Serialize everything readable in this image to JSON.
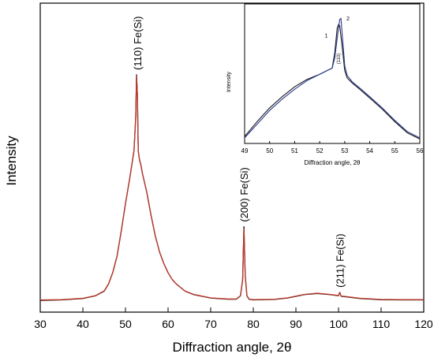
{
  "chart_data": [
    {
      "type": "line",
      "title": "",
      "xlabel": "Diffraction angle, 2θ",
      "ylabel": "Intensity",
      "xlim": [
        30,
        120
      ],
      "ylim": [
        0,
        1
      ],
      "x_ticks": [
        30,
        40,
        50,
        60,
        70,
        80,
        90,
        100,
        110,
        120
      ],
      "y_ticks": [],
      "grid": false,
      "series": [
        {
          "color": "#000000",
          "x": [
            30,
            35,
            40,
            43,
            45,
            46,
            47,
            48,
            49,
            50,
            51,
            51.5,
            52,
            52.4,
            52.6,
            52.8,
            53.0,
            53.3,
            53.6,
            54,
            55,
            56,
            57,
            58,
            59,
            60,
            61,
            62,
            64,
            66,
            70,
            74,
            76,
            77,
            77.5,
            77.8,
            78.1,
            78.5,
            79,
            80,
            85,
            88,
            92,
            95,
            98,
            100,
            100.3,
            100.6,
            102,
            105,
            110,
            115,
            120
          ],
          "y": [
            0.01,
            0.012,
            0.018,
            0.03,
            0.05,
            0.08,
            0.13,
            0.2,
            0.31,
            0.43,
            0.54,
            0.6,
            0.66,
            0.8,
            0.99,
            0.9,
            0.66,
            0.62,
            0.6,
            0.56,
            0.48,
            0.38,
            0.29,
            0.22,
            0.17,
            0.13,
            0.1,
            0.08,
            0.05,
            0.035,
            0.02,
            0.015,
            0.015,
            0.03,
            0.1,
            0.33,
            0.12,
            0.03,
            0.015,
            0.012,
            0.014,
            0.02,
            0.035,
            0.04,
            0.035,
            0.03,
            0.045,
            0.028,
            0.025,
            0.018,
            0.013,
            0.012,
            0.012
          ]
        },
        {
          "color": "#c0392b",
          "x": [
            30,
            35,
            40,
            43,
            45,
            46,
            47,
            48,
            49,
            50,
            51,
            51.5,
            52,
            52.4,
            52.6,
            52.8,
            53.0,
            53.3,
            53.6,
            54,
            55,
            56,
            57,
            58,
            59,
            60,
            61,
            62,
            64,
            66,
            70,
            74,
            76,
            77,
            77.5,
            77.8,
            78.1,
            78.5,
            79,
            80,
            85,
            88,
            92,
            95,
            98,
            100,
            100.3,
            100.6,
            102,
            105,
            110,
            115,
            120
          ],
          "y": [
            0.012,
            0.013,
            0.019,
            0.031,
            0.051,
            0.081,
            0.13,
            0.2,
            0.31,
            0.43,
            0.54,
            0.6,
            0.66,
            0.8,
            0.985,
            0.9,
            0.66,
            0.62,
            0.6,
            0.56,
            0.48,
            0.38,
            0.29,
            0.22,
            0.17,
            0.13,
            0.1,
            0.08,
            0.05,
            0.036,
            0.021,
            0.016,
            0.016,
            0.031,
            0.1,
            0.32,
            0.12,
            0.031,
            0.016,
            0.013,
            0.015,
            0.021,
            0.036,
            0.041,
            0.036,
            0.031,
            0.045,
            0.029,
            0.026,
            0.019,
            0.014,
            0.013,
            0.013
          ]
        }
      ],
      "annotations": [
        {
          "text": "(110)  Fe(Si)",
          "x": 52.8,
          "y": 0.99
        },
        {
          "text": "(200)  Fe(Si)",
          "x": 77.8,
          "y": 0.33
        },
        {
          "text": "(211)  Fe(Si)",
          "x": 100.3,
          "y": 0.045
        }
      ]
    },
    {
      "type": "line",
      "title": "",
      "xlabel": "Diffraction angle, 2θ",
      "ylabel": "Intensity",
      "xlim": [
        49,
        56
      ],
      "ylim": [
        0,
        1
      ],
      "x_ticks": [
        49,
        50,
        51,
        52,
        53,
        54,
        55,
        56
      ],
      "grid": false,
      "series": [
        {
          "name": "1",
          "color": "#1a1a1a",
          "x": [
            49,
            49.5,
            50,
            50.5,
            51,
            51.5,
            52,
            52.3,
            52.5,
            52.6,
            52.7,
            52.75,
            52.8,
            52.9,
            53.0,
            53.1,
            53.3,
            53.6,
            54,
            54.5,
            55,
            55.5,
            56
          ],
          "y": [
            0.03,
            0.15,
            0.26,
            0.35,
            0.43,
            0.49,
            0.53,
            0.56,
            0.58,
            0.7,
            0.9,
            0.93,
            0.92,
            0.75,
            0.56,
            0.5,
            0.46,
            0.41,
            0.34,
            0.25,
            0.15,
            0.06,
            0.01
          ]
        },
        {
          "name": "2",
          "color": "#2b3a8f",
          "x": [
            49,
            49.5,
            50,
            50.5,
            51,
            51.5,
            52,
            52.3,
            52.5,
            52.6,
            52.7,
            52.8,
            52.85,
            52.9,
            53.0,
            53.1,
            53.3,
            53.6,
            54,
            54.5,
            55,
            55.5,
            56
          ],
          "y": [
            0.02,
            0.13,
            0.24,
            0.33,
            0.41,
            0.48,
            0.53,
            0.56,
            0.58,
            0.66,
            0.82,
            0.97,
            0.98,
            0.85,
            0.6,
            0.52,
            0.47,
            0.42,
            0.35,
            0.26,
            0.16,
            0.07,
            0.02
          ]
        }
      ],
      "annotations": [
        {
          "text": "1",
          "x": 52.7,
          "y": 0.84
        },
        {
          "text": "2",
          "x": 52.85,
          "y": 0.98
        },
        {
          "text": "(110)",
          "x": 52.75,
          "y": 0.6
        }
      ]
    }
  ]
}
